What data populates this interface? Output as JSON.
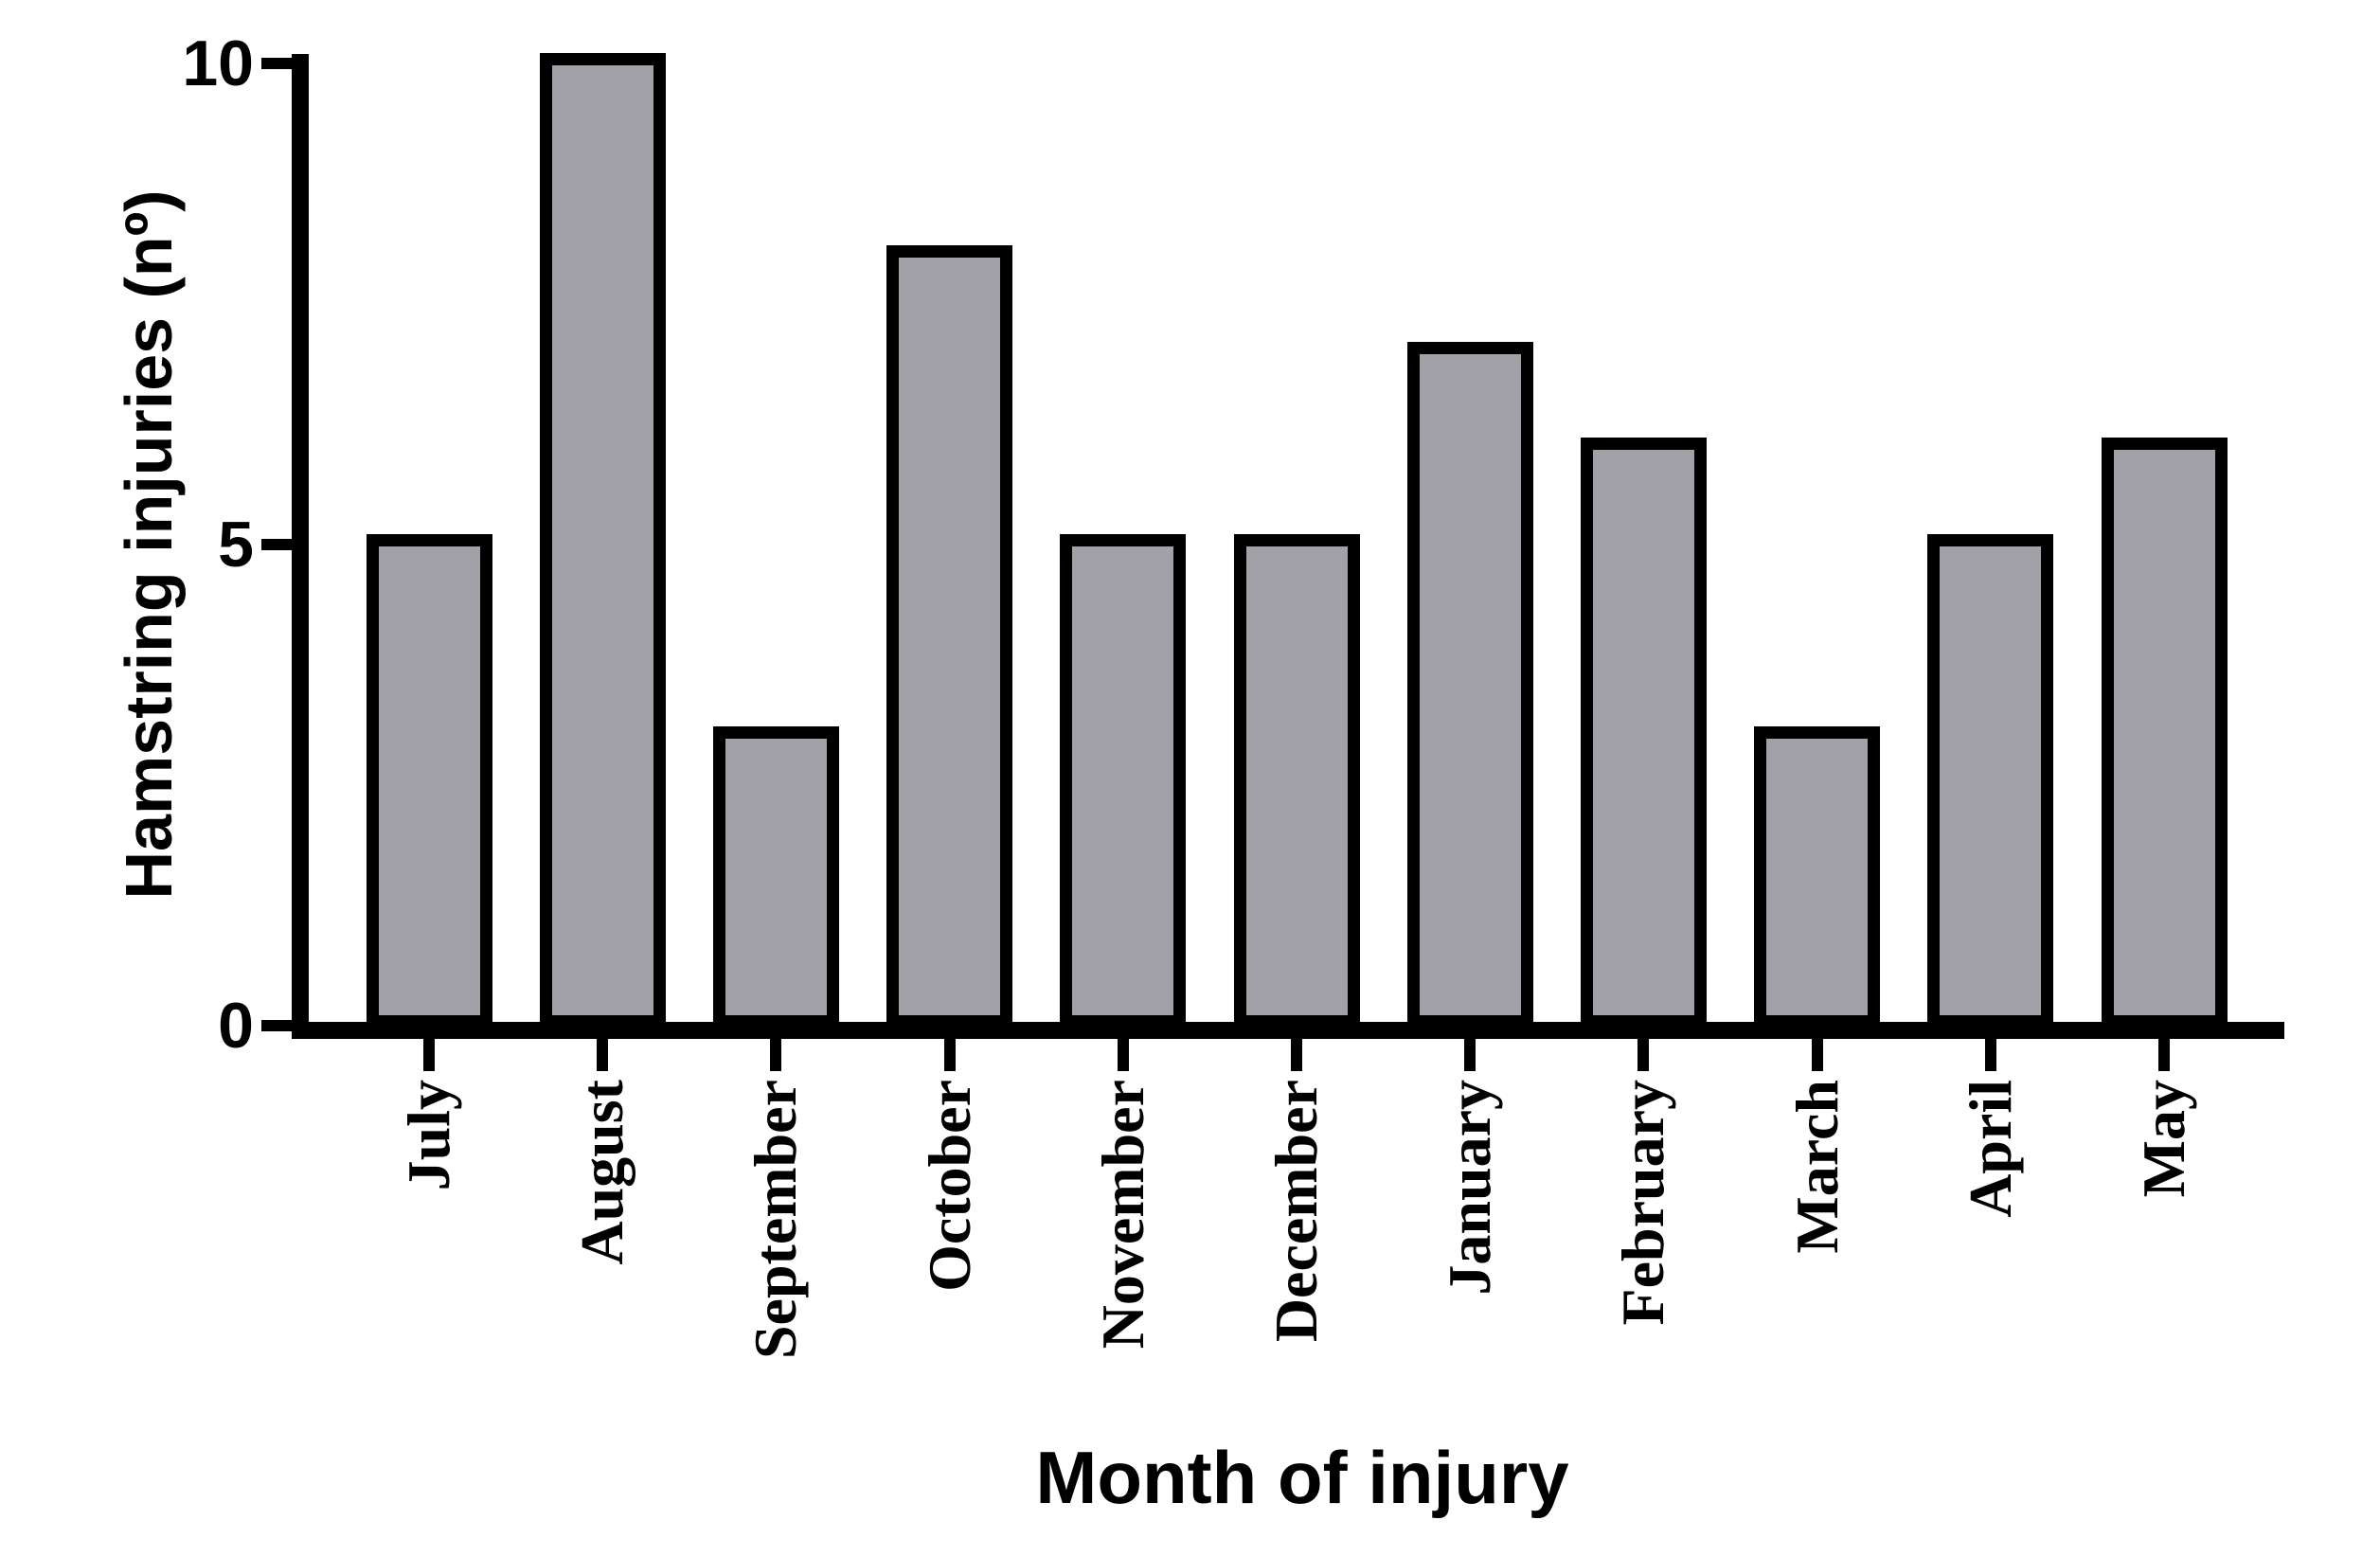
{
  "figure": {
    "background": "#ffffff"
  },
  "chart_data": {
    "type": "bar",
    "title": "",
    "xlabel": "Month of injury",
    "ylabel": "Hamstring injuries (nº)",
    "categories": [
      "July",
      "August",
      "September",
      "October",
      "November",
      "December",
      "January",
      "February",
      "March",
      "April",
      "May"
    ],
    "values": [
      5,
      10,
      3,
      8,
      5,
      5,
      7,
      6,
      3,
      5,
      6
    ],
    "yticks": [
      0,
      5,
      10
    ],
    "ylim": [
      0,
      10
    ],
    "grid": false,
    "legend": null,
    "bar_fill": "#a2a1a7",
    "bar_border": "#000000",
    "axis_color": "#000000",
    "text_color": "#000000"
  }
}
